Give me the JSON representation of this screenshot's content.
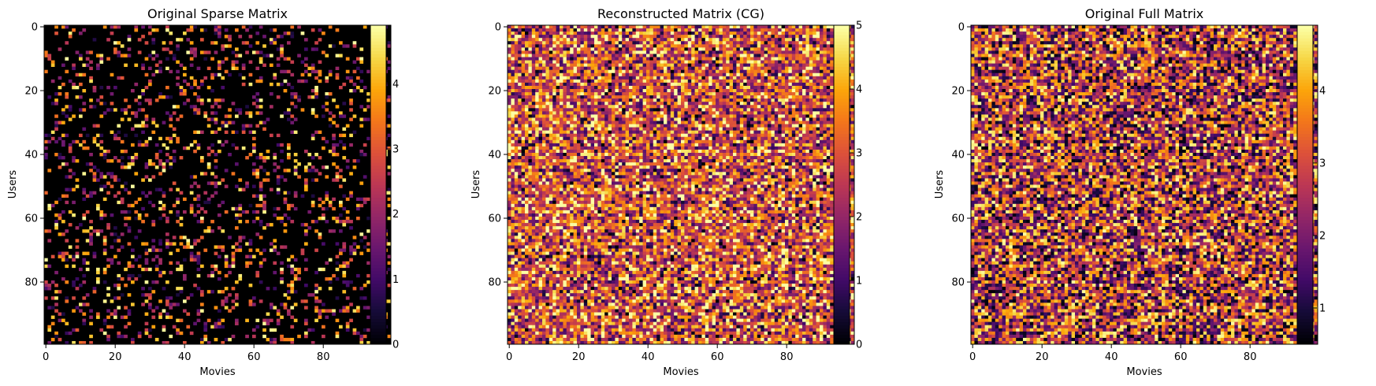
{
  "chart_data": [
    {
      "type": "heatmap",
      "title": "Original Sparse Matrix",
      "xlabel": "Movies",
      "ylabel": "Users",
      "shape": [
        100,
        100
      ],
      "colormap": "inferno",
      "x_ticks": [
        0,
        20,
        40,
        60,
        80
      ],
      "y_ticks": [
        0,
        20,
        40,
        60,
        80
      ],
      "colorbar_range": [
        0,
        4.9
      ],
      "colorbar_ticks": [
        0,
        1,
        2,
        3,
        4
      ],
      "fill_fraction": 0.2,
      "value_distribution": "sparse, nonzero values 1-5"
    },
    {
      "type": "heatmap",
      "title": "Reconstructed Matrix (CG)",
      "xlabel": "Movies",
      "ylabel": "Users",
      "shape": [
        100,
        100
      ],
      "colormap": "inferno",
      "x_ticks": [
        0,
        20,
        40,
        60,
        80
      ],
      "y_ticks": [
        0,
        20,
        40,
        60,
        80
      ],
      "colorbar_range": [
        0,
        5
      ],
      "colorbar_ticks": [
        0,
        1,
        2,
        3,
        4,
        5
      ],
      "fill_fraction": 1.0,
      "value_distribution": "dense, clipped 0-5, many saturated high values"
    },
    {
      "type": "heatmap",
      "title": "Original Full Matrix",
      "xlabel": "Movies",
      "ylabel": "Users",
      "shape": [
        100,
        100
      ],
      "colormap": "inferno",
      "x_ticks": [
        0,
        20,
        40,
        60,
        80
      ],
      "y_ticks": [
        0,
        20,
        40,
        60,
        80
      ],
      "colorbar_range": [
        0.5,
        4.9
      ],
      "colorbar_ticks": [
        1,
        2,
        3,
        4
      ],
      "fill_fraction": 1.0,
      "value_distribution": "dense, uniform random 0.5-4.9"
    }
  ]
}
